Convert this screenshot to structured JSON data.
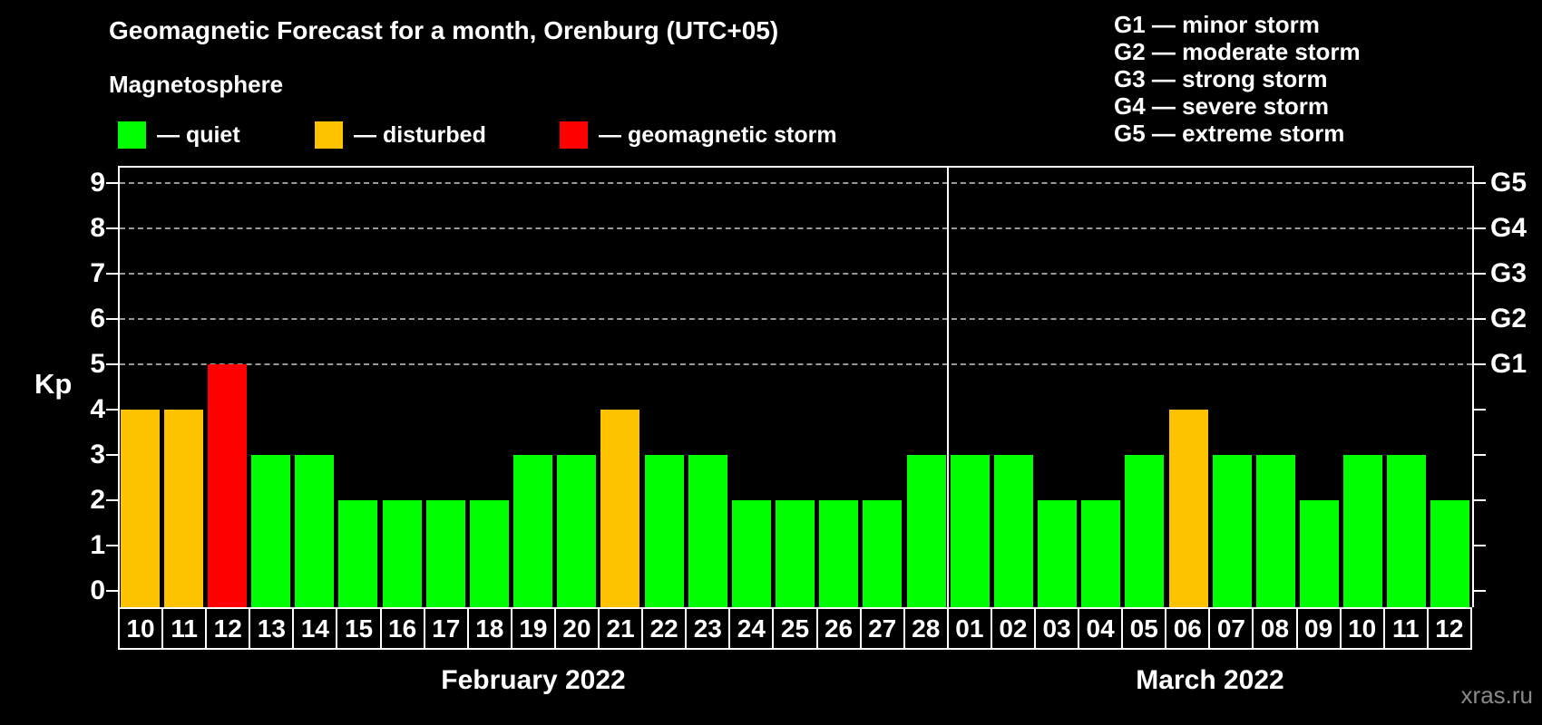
{
  "header": {
    "title": "Geomagnetic Forecast for a month, Orenburg (UTC+05)",
    "subtitle": "Magnetosphere",
    "legend": [
      {
        "status": "quiet",
        "label": "— quiet"
      },
      {
        "status": "disturbed",
        "label": "— disturbed"
      },
      {
        "status": "storm",
        "label": "— geomagnetic storm"
      }
    ],
    "g_scale": [
      "G1 — minor storm",
      "G2 — moderate storm",
      "G3 — strong storm",
      "G4 — severe storm",
      "G5 — extreme storm"
    ]
  },
  "colors": {
    "quiet": "#00ff00",
    "disturbed": "#ffc200",
    "storm": "#ff0000",
    "axis": "#ffffff",
    "grid": "#999999",
    "text": "#ffffff",
    "background": "#000000",
    "watermark": "#8a8a8a"
  },
  "chart_data": {
    "type": "bar",
    "title": "Geomagnetic Forecast for a month, Orenburg (UTC+05)",
    "ylabel": "Kp",
    "ylim": [
      0,
      9
    ],
    "yticks": [
      0,
      1,
      2,
      3,
      4,
      5,
      6,
      7,
      8,
      9
    ],
    "gridline_levels": [
      5,
      6,
      7,
      8,
      9
    ],
    "grid": "dashed",
    "legend_position": "top",
    "right_axis": [
      {
        "value": 5,
        "label": "G1"
      },
      {
        "value": 6,
        "label": "G2"
      },
      {
        "value": 7,
        "label": "G3"
      },
      {
        "value": 8,
        "label": "G4"
      },
      {
        "value": 9,
        "label": "G5"
      }
    ],
    "months": [
      {
        "label": "February 2022",
        "key": "feb",
        "days": 19
      },
      {
        "label": "March 2022",
        "key": "mar",
        "days": 12
      }
    ],
    "categories": [
      "10",
      "11",
      "12",
      "13",
      "14",
      "15",
      "16",
      "17",
      "18",
      "19",
      "20",
      "21",
      "22",
      "23",
      "24",
      "25",
      "26",
      "27",
      "28",
      "01",
      "02",
      "03",
      "04",
      "05",
      "06",
      "07",
      "08",
      "09",
      "10",
      "11",
      "12"
    ],
    "values": [
      4,
      4,
      5,
      3,
      3,
      2,
      2,
      2,
      2,
      3,
      3,
      4,
      3,
      3,
      2,
      2,
      2,
      2,
      3,
      3,
      3,
      2,
      2,
      3,
      4,
      3,
      3,
      2,
      3,
      3,
      2
    ],
    "statuses": [
      "disturbed",
      "disturbed",
      "storm",
      "quiet",
      "quiet",
      "quiet",
      "quiet",
      "quiet",
      "quiet",
      "quiet",
      "quiet",
      "disturbed",
      "quiet",
      "quiet",
      "quiet",
      "quiet",
      "quiet",
      "quiet",
      "quiet",
      "quiet",
      "quiet",
      "quiet",
      "quiet",
      "quiet",
      "disturbed",
      "quiet",
      "quiet",
      "quiet",
      "quiet",
      "quiet",
      "quiet"
    ]
  },
  "watermark": "xras.ru"
}
